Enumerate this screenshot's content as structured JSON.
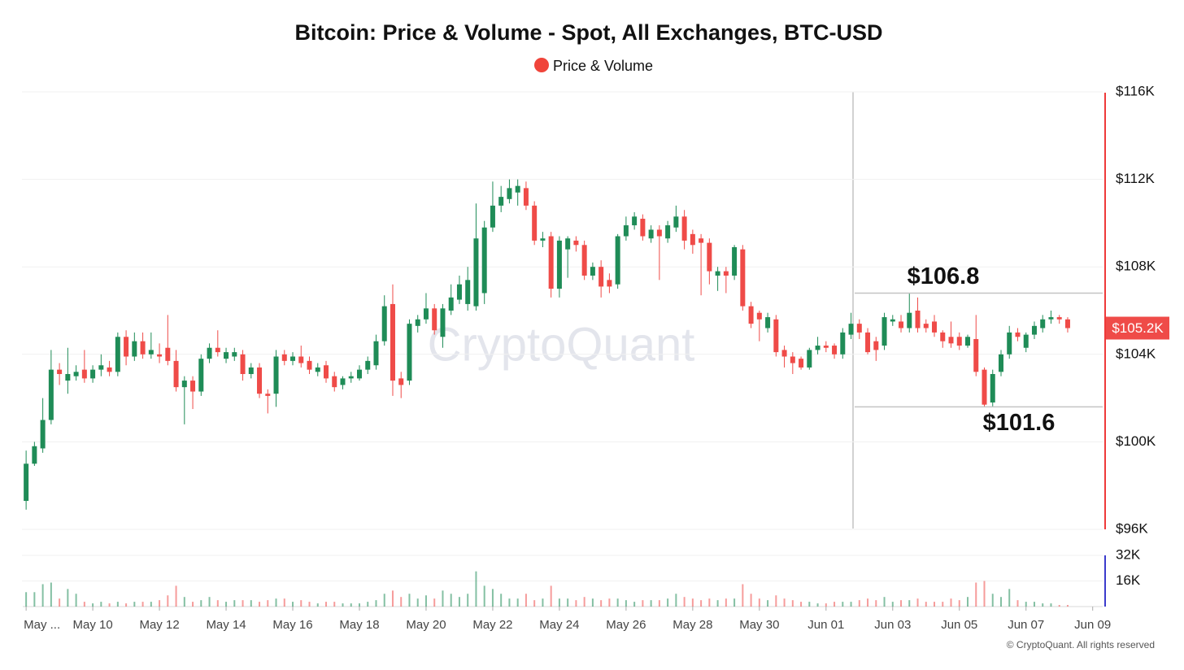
{
  "chart_data": {
    "type": "candlestick",
    "title": "Bitcoin: Price & Volume - Spot, All Exchanges, BTC-USD",
    "legend": "Price & Volume",
    "legend_color": "#f0443a",
    "watermark": "CryptoQuant",
    "footer": "© CryptoQuant. All rights reserved",
    "up_color": "#1f8c57",
    "down_color": "#ef4b48",
    "xlim": [
      -0.5,
      129.2
    ],
    "xticks": [
      {
        "value": 0,
        "label": "May ..."
      },
      {
        "value": 8,
        "label": "May 10"
      },
      {
        "value": 16,
        "label": "May 12"
      },
      {
        "value": 24,
        "label": "May 14"
      },
      {
        "value": 32,
        "label": "May 16"
      },
      {
        "value": 40,
        "label": "May 18"
      },
      {
        "value": 48,
        "label": "May 20"
      },
      {
        "value": 56,
        "label": "May 22"
      },
      {
        "value": 64,
        "label": "May 24"
      },
      {
        "value": 72,
        "label": "May 26"
      },
      {
        "value": 80,
        "label": "May 28"
      },
      {
        "value": 88,
        "label": "May 30"
      },
      {
        "value": 96,
        "label": "Jun 01"
      },
      {
        "value": 104,
        "label": "Jun 03"
      },
      {
        "value": 112,
        "label": "Jun 05"
      },
      {
        "value": 120,
        "label": "Jun 07"
      },
      {
        "value": 128,
        "label": "Jun 09"
      }
    ],
    "ylim": [
      96,
      116
    ],
    "yticks": [
      {
        "value": 96,
        "label": "$96K"
      },
      {
        "value": 100,
        "label": "$100K"
      },
      {
        "value": 104,
        "label": "$104K"
      },
      {
        "value": 108,
        "label": "$108K"
      },
      {
        "value": 112,
        "label": "$112K"
      },
      {
        "value": 116,
        "label": "$116K"
      }
    ],
    "y2lim": [
      0,
      32
    ],
    "y2ticks": [
      {
        "value": 16,
        "label": "16K"
      },
      {
        "value": 32,
        "label": "32K"
      }
    ],
    "last_price": {
      "value": 105.2,
      "label": "$105.2K"
    },
    "annotations": [
      {
        "text": "$106.8",
        "value": 106.8
      },
      {
        "text": "$101.6",
        "value": 101.6
      }
    ],
    "open": [
      97.3,
      99.0,
      99.7,
      101.0,
      103.3,
      102.8,
      103.0,
      103.3,
      102.9,
      103.3,
      103.4,
      103.2,
      104.8,
      103.9,
      104.6,
      104.0,
      104.0,
      104.3,
      103.7,
      102.5,
      102.8,
      102.3,
      103.8,
      104.3,
      103.8,
      103.9,
      104.0,
      103.1,
      103.4,
      102.2,
      102.2,
      104.0,
      103.7,
      103.9,
      103.7,
      103.2,
      103.5,
      103.0,
      102.6,
      102.9,
      102.9,
      103.3,
      103.5,
      104.6,
      106.3,
      102.9,
      102.8,
      105.3,
      105.6,
      106.1,
      104.8,
      106.0,
      106.5,
      106.3,
      106.2,
      106.8,
      109.8,
      110.8,
      111.1,
      111.4,
      111.6,
      110.8,
      109.2,
      109.4,
      107.0,
      108.8,
      109.2,
      109.0,
      107.6,
      108.0,
      107.4,
      107.2,
      109.4,
      109.9,
      110.2,
      109.3,
      109.7,
      109.3,
      109.8,
      110.3,
      109.5,
      109.3,
      109.1,
      107.6,
      107.8,
      107.6,
      108.8,
      106.2,
      105.9,
      105.2,
      105.6,
      104.2,
      103.9,
      103.8,
      103.4,
      104.2,
      104.4,
      104.4,
      104.0,
      104.9,
      105.4,
      105.0,
      104.6,
      104.4,
      105.5,
      105.5,
      105.2,
      106.0,
      105.4,
      105.5,
      105.0,
      104.8,
      104.8,
      104.4,
      104.7,
      103.3,
      101.8,
      103.2,
      104.0,
      105.0,
      104.3,
      104.9,
      105.2,
      105.6,
      105.7,
      105.6
    ],
    "high": [
      99.6,
      100.0,
      102.0,
      104.2,
      103.6,
      104.3,
      103.5,
      104.2,
      103.5,
      104.0,
      103.7,
      105.0,
      105.1,
      105.0,
      105.0,
      105.0,
      104.5,
      105.8,
      104.2,
      103.0,
      103.0,
      104.0,
      104.5,
      105.1,
      104.3,
      104.3,
      104.2,
      103.6,
      103.6,
      102.4,
      104.2,
      104.2,
      104.1,
      104.4,
      103.9,
      103.6,
      103.7,
      103.2,
      103.0,
      103.2,
      103.5,
      103.9,
      104.9,
      106.7,
      107.2,
      103.2,
      105.6,
      105.8,
      106.8,
      106.3,
      106.3,
      107.2,
      107.6,
      108.0,
      110.9,
      110.1,
      111.9,
      111.7,
      112.0,
      112.0,
      111.9,
      111.0,
      109.6,
      109.6,
      109.4,
      109.4,
      109.4,
      109.2,
      108.2,
      108.3,
      107.7,
      109.5,
      110.3,
      110.5,
      110.4,
      109.9,
      109.9,
      110.1,
      110.8,
      110.6,
      109.7,
      109.5,
      109.3,
      108.0,
      108.0,
      109.0,
      109.0,
      106.4,
      106.0,
      105.9,
      105.8,
      104.4,
      104.1,
      103.9,
      104.3,
      104.8,
      104.6,
      104.5,
      105.2,
      105.9,
      105.6,
      105.2,
      104.8,
      105.9,
      105.8,
      105.8,
      106.8,
      106.6,
      105.6,
      105.8,
      105.1,
      105.5,
      105.0,
      104.9,
      105.8,
      103.4,
      103.3,
      104.2,
      105.3,
      105.2,
      105.0,
      105.5,
      105.8,
      106.0,
      105.8,
      105.7
    ],
    "low": [
      96.9,
      98.9,
      99.5,
      100.8,
      102.6,
      102.2,
      102.8,
      102.7,
      102.7,
      103.0,
      103.0,
      103.0,
      103.5,
      103.7,
      103.8,
      103.8,
      103.6,
      103.5,
      102.3,
      100.8,
      101.5,
      102.1,
      103.6,
      103.9,
      103.6,
      103.7,
      102.8,
      102.9,
      102.0,
      101.3,
      101.6,
      103.5,
      103.5,
      103.4,
      103.1,
      103.0,
      102.7,
      102.3,
      102.4,
      102.7,
      102.8,
      103.1,
      103.3,
      104.4,
      102.1,
      102.0,
      102.6,
      105.0,
      105.4,
      104.9,
      104.3,
      105.8,
      106.3,
      106.0,
      106.0,
      106.3,
      109.6,
      110.5,
      110.9,
      110.8,
      110.6,
      109.0,
      108.9,
      106.6,
      106.6,
      107.5,
      108.7,
      107.4,
      107.4,
      106.6,
      106.8,
      107.0,
      109.2,
      109.7,
      109.2,
      109.1,
      107.4,
      109.1,
      109.6,
      108.8,
      108.6,
      106.7,
      107.2,
      106.9,
      106.8,
      107.4,
      106.0,
      105.2,
      104.6,
      105.0,
      103.9,
      103.4,
      103.1,
      103.3,
      103.3,
      104.0,
      104.1,
      103.8,
      103.8,
      104.7,
      104.7,
      104.0,
      103.7,
      104.2,
      105.3,
      105.0,
      105.0,
      105.0,
      105.0,
      104.8,
      104.3,
      104.3,
      104.2,
      104.3,
      103.0,
      101.6,
      101.6,
      103.0,
      103.8,
      104.6,
      104.1,
      104.7,
      105.0,
      105.4,
      105.4,
      105.0
    ],
    "close": [
      99.0,
      99.8,
      101.0,
      103.3,
      103.1,
      103.1,
      103.2,
      102.9,
      103.3,
      103.5,
      103.2,
      104.8,
      103.9,
      104.6,
      104.0,
      104.2,
      103.9,
      103.7,
      102.5,
      102.8,
      102.3,
      103.8,
      104.3,
      104.1,
      104.1,
      104.1,
      103.1,
      103.4,
      102.2,
      102.1,
      103.9,
      103.7,
      103.9,
      103.6,
      103.3,
      103.4,
      102.9,
      102.5,
      102.9,
      103.0,
      103.3,
      103.7,
      104.6,
      106.2,
      102.8,
      102.6,
      105.4,
      105.6,
      106.1,
      105.1,
      106.1,
      106.6,
      107.2,
      107.4,
      109.3,
      109.8,
      110.8,
      111.2,
      111.6,
      111.7,
      110.8,
      109.2,
      109.3,
      107.0,
      109.2,
      109.3,
      109.0,
      107.6,
      108.0,
      107.1,
      107.1,
      109.4,
      109.9,
      110.3,
      109.4,
      109.7,
      109.4,
      109.9,
      110.3,
      109.2,
      109.0,
      109.1,
      107.8,
      107.8,
      107.6,
      108.9,
      106.2,
      105.4,
      105.6,
      105.7,
      104.1,
      103.9,
      103.6,
      103.4,
      104.2,
      104.4,
      104.3,
      104.0,
      105.0,
      105.4,
      105.0,
      104.1,
      104.2,
      105.7,
      105.6,
      105.2,
      105.9,
      105.2,
      105.2,
      105.0,
      104.6,
      104.5,
      104.4,
      104.8,
      103.2,
      101.7,
      103.1,
      104.0,
      105.0,
      104.8,
      104.9,
      105.3,
      105.6,
      105.7,
      105.6,
      105.2
    ],
    "volume": [
      9,
      9,
      14,
      15,
      5,
      11,
      8,
      3,
      2,
      3,
      2,
      3,
      2,
      3,
      3,
      3,
      4,
      7,
      13,
      6,
      3,
      4,
      6,
      4,
      3,
      4,
      4,
      4,
      3,
      4,
      5,
      5,
      3,
      4,
      3,
      2,
      3,
      3,
      2,
      2,
      2,
      3,
      4,
      8,
      10,
      6,
      8,
      5,
      7,
      5,
      10,
      8,
      6,
      8,
      22,
      13,
      11,
      8,
      5,
      5,
      8,
      4,
      5,
      13,
      5,
      5,
      4,
      6,
      5,
      4,
      5,
      5,
      4,
      3,
      4,
      4,
      4,
      5,
      8,
      6,
      5,
      4,
      5,
      4,
      5,
      5,
      14,
      8,
      5,
      4,
      7,
      5,
      4,
      3,
      3,
      2,
      2,
      3,
      3,
      3,
      4,
      5,
      4,
      6,
      3,
      4,
      4,
      5,
      3,
      3,
      3,
      5,
      4,
      6,
      15,
      16,
      8,
      6,
      11,
      4,
      3,
      3,
      2,
      2,
      1,
      1
    ]
  }
}
